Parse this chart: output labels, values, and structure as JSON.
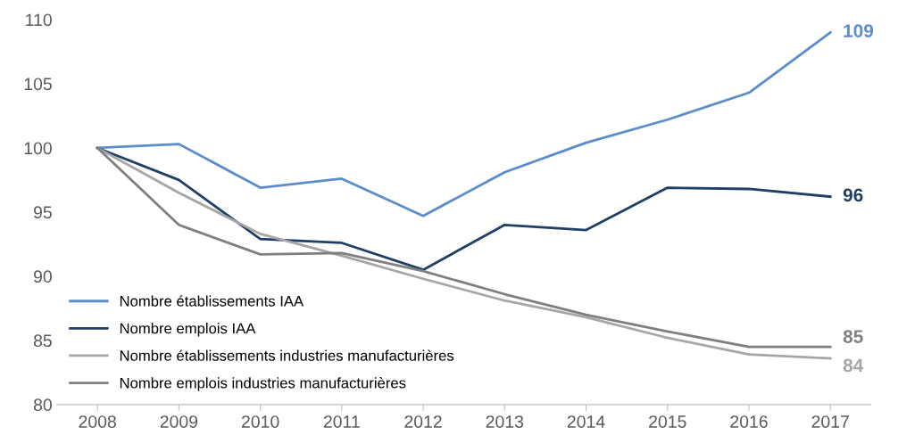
{
  "chart_data": {
    "type": "line",
    "categories": [
      "2008",
      "2009",
      "2010",
      "2011",
      "2012",
      "2013",
      "2014",
      "2015",
      "2016",
      "2017"
    ],
    "series": [
      {
        "name": "Nombre établissements IAA",
        "color": "#5b8ccc",
        "values": [
          100,
          100.3,
          96.9,
          97.6,
          94.7,
          98.1,
          100.4,
          102.2,
          104.3,
          109.0
        ],
        "value_labels": [
          null,
          null,
          null,
          null,
          null,
          null,
          null,
          null,
          null,
          "109"
        ]
      },
      {
        "name": "Nombre emplois IAA",
        "color": "#1f3f66",
        "values": [
          100,
          97.5,
          92.9,
          92.6,
          90.5,
          94.0,
          93.6,
          96.9,
          96.8,
          96.2
        ],
        "value_labels": [
          null,
          null,
          null,
          null,
          null,
          null,
          null,
          null,
          null,
          "96"
        ]
      },
      {
        "name": "Nombre établissements industries manufacturières",
        "color": "#a6a6a6",
        "values": [
          100,
          96.5,
          93.3,
          91.6,
          89.8,
          88.1,
          86.8,
          85.2,
          83.9,
          83.6
        ],
        "value_labels": [
          null,
          null,
          null,
          null,
          null,
          null,
          null,
          null,
          null,
          "84"
        ]
      },
      {
        "name": "Nombre emplois industries manufacturières",
        "color": "#7f7f7f",
        "values": [
          100,
          94.0,
          91.7,
          91.8,
          90.4,
          88.6,
          87.0,
          85.7,
          84.5,
          84.5
        ],
        "value_labels": [
          null,
          null,
          null,
          null,
          null,
          null,
          null,
          null,
          null,
          "85"
        ]
      }
    ],
    "ylim": [
      80,
      110
    ],
    "yticks": [
      80,
      85,
      90,
      95,
      100,
      105,
      110
    ],
    "grid": false,
    "legend": "bottom left",
    "marker": "none",
    "line_style": "solid"
  }
}
